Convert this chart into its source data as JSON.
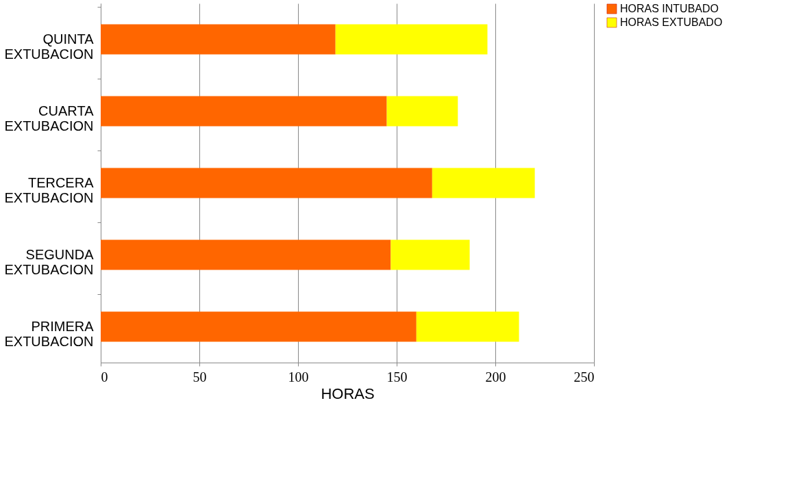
{
  "chart_data": {
    "type": "bar",
    "orientation": "horizontal",
    "stacked": true,
    "categories": [
      "QUINTA EXTUBACION",
      "CUARTA EXTUBACION",
      "TERCERA EXTUBACION",
      "SEGUNDA EXTUBACION",
      "PRIMERA EXTUBACION"
    ],
    "series": [
      {
        "name": "HORAS INTUBADO",
        "color": "#ff6600",
        "values": [
          119,
          145,
          168,
          147,
          160
        ]
      },
      {
        "name": "HORAS EXTUBADO",
        "color": "#ffff00",
        "values": [
          77,
          36,
          52,
          40,
          52
        ]
      }
    ],
    "xlabel": "HORAS",
    "xlim": [
      0,
      250
    ],
    "xticks": [
      0,
      50,
      100,
      150,
      200,
      250
    ],
    "grid": "x",
    "legend": "right"
  }
}
